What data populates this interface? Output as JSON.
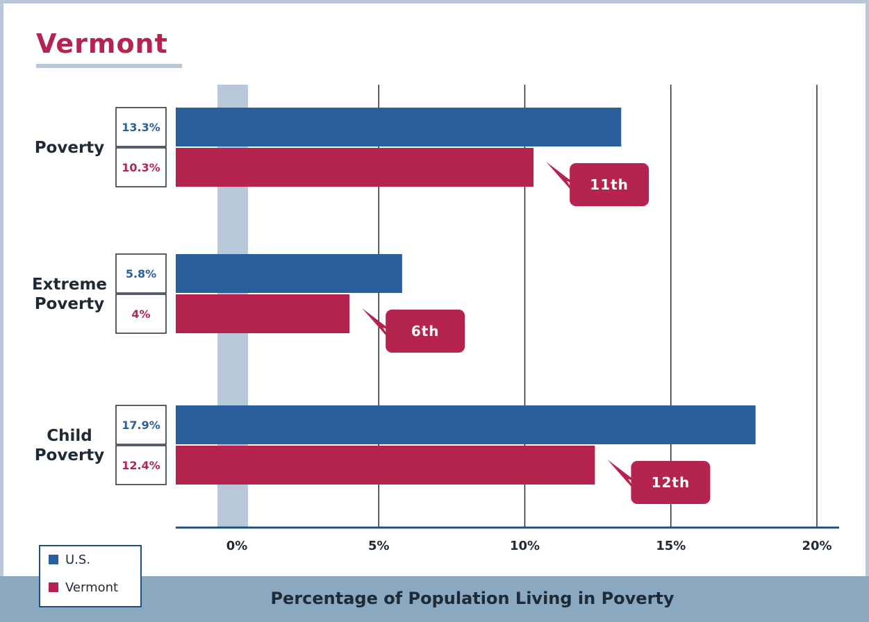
{
  "title": "Vermont",
  "legend": {
    "items": [
      {
        "label": "U.S.",
        "color": "#2a5f9e"
      },
      {
        "label": "Vermont",
        "color": "#b5234f"
      }
    ]
  },
  "chart_data": {
    "type": "bar",
    "orientation": "horizontal",
    "title": "Vermont",
    "xlabel": "Percentage of Population Living in Poverty",
    "ylabel": "",
    "xlim": [
      -2,
      20
    ],
    "xticks": [
      "0%",
      "5%",
      "10%",
      "15%",
      "20%"
    ],
    "xtick_values": [
      0,
      5,
      10,
      15,
      20
    ],
    "grid": "vertical",
    "legend_position": "bottom-left",
    "categories": [
      {
        "label_lines": [
          "Poverty"
        ]
      },
      {
        "label_lines": [
          "Extreme",
          "Poverty"
        ]
      },
      {
        "label_lines": [
          "Child",
          "Poverty"
        ]
      }
    ],
    "series": [
      {
        "name": "U.S.",
        "color": "#2a5f9e",
        "values": [
          13.3,
          5.8,
          17.9
        ],
        "value_labels": [
          "13.3%",
          "5.8%",
          "17.9%"
        ]
      },
      {
        "name": "Vermont",
        "color": "#b5234f",
        "values": [
          10.3,
          4,
          12.4
        ],
        "value_labels": [
          "10.3%",
          "4%",
          "12.4%"
        ]
      }
    ],
    "rank_labels": [
      "11th",
      "6th",
      "12th"
    ],
    "rank_color": "#b5234f"
  }
}
